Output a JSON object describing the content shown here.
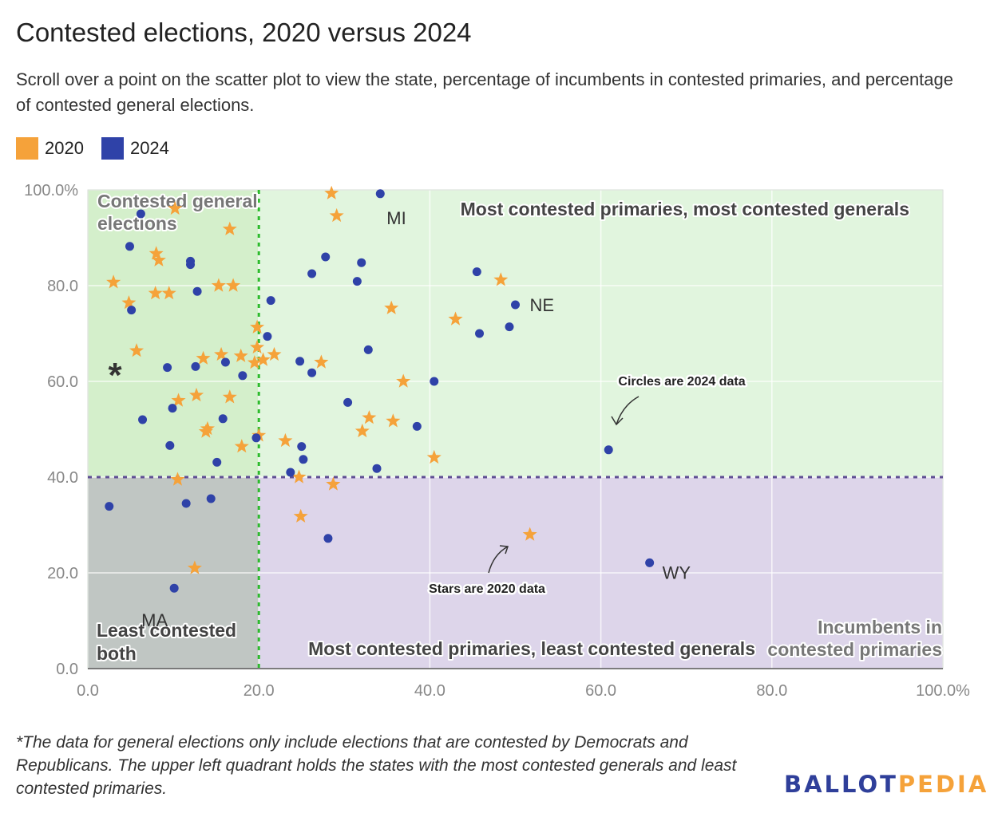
{
  "title": "Contested elections, 2020 versus 2024",
  "subtitle": "Scroll over a point on the scatter plot to view the state, percentage of incumbents in contested primaries, and percentage of contested general elections.",
  "legend": [
    {
      "label": "2020",
      "color": "#f5a23a"
    },
    {
      "label": "2024",
      "color": "#2f42a8"
    }
  ],
  "footnote": "*The data for general elections only include elections that are contested by Democrats and Republicans. The upper left quadrant holds the states with the most contested generals and least contested primaries.",
  "brand": {
    "part1": "BALLOT",
    "part2": "PEDIA"
  },
  "chart_data": {
    "type": "scatter",
    "xlim": [
      0,
      100
    ],
    "ylim": [
      0,
      100
    ],
    "x_ticks": [
      "0.0",
      "20.0",
      "40.0",
      "60.0",
      "80.0",
      "100.0%"
    ],
    "y_ticks": [
      "0.0",
      "20.0",
      "40.0",
      "60.0",
      "80.0",
      "100.0%"
    ],
    "grid": true,
    "thresholds": {
      "x": 20,
      "y": 40
    },
    "quadrant_labels": {
      "upper_left": "Contested general elections",
      "upper_right": "Most contested primaries, most contested generals",
      "lower_left": "Least contested both",
      "lower_right": "Most contested primaries, least contested generals",
      "x_axis_note": "Incumbents in contested primaries"
    },
    "asterisk": "*",
    "annotations": {
      "circles": "Circles are 2024 data",
      "stars": "Stars are 2020 data"
    },
    "colors": {
      "2020": "#f5a23a",
      "2024": "#2f42a8",
      "q_upper_left": "#d4efcb",
      "q_upper_right": "#e1f5de",
      "q_lower_left": "#c0c6c3",
      "q_lower_right": "#ddd5ea"
    },
    "series": [
      {
        "name": "2020",
        "marker": "star",
        "points": [
          [
            10.2,
            96.1
          ],
          [
            28.5,
            99.3
          ],
          [
            29.1,
            94.6
          ],
          [
            16.6,
            91.8
          ],
          [
            8.0,
            86.7
          ],
          [
            8.3,
            85.3
          ],
          [
            3.0,
            80.7
          ],
          [
            7.9,
            78.4
          ],
          [
            9.5,
            78.4
          ],
          [
            15.3,
            80.0
          ],
          [
            17.0,
            80.0
          ],
          [
            48.3,
            81.2
          ],
          [
            4.8,
            76.4
          ],
          [
            35.5,
            75.3
          ],
          [
            43.0,
            73.0
          ],
          [
            19.8,
            71.3
          ],
          [
            19.8,
            67.1
          ],
          [
            5.7,
            66.4
          ],
          [
            13.5,
            64.8
          ],
          [
            15.6,
            65.6
          ],
          [
            17.9,
            65.3
          ],
          [
            19.5,
            63.9
          ],
          [
            20.5,
            64.5
          ],
          [
            21.8,
            65.6
          ],
          [
            27.3,
            64.0
          ],
          [
            36.9,
            60.0
          ],
          [
            16.6,
            56.7
          ],
          [
            12.7,
            57.1
          ],
          [
            10.6,
            56.0
          ],
          [
            14.0,
            50.1
          ],
          [
            13.8,
            49.5
          ],
          [
            32.9,
            52.4
          ],
          [
            35.7,
            51.7
          ],
          [
            32.1,
            49.6
          ],
          [
            20.0,
            48.7
          ],
          [
            23.1,
            47.6
          ],
          [
            18.0,
            46.4
          ],
          [
            40.5,
            44.1
          ],
          [
            24.7,
            40.0
          ],
          [
            10.5,
            39.5
          ],
          [
            28.7,
            38.5
          ],
          [
            24.9,
            31.8
          ],
          [
            51.7,
            28.0
          ],
          [
            12.5,
            21.0
          ]
        ]
      },
      {
        "name": "2024",
        "marker": "circle",
        "points": [
          [
            34.2,
            99.2
          ],
          [
            6.2,
            95.0
          ],
          [
            4.9,
            88.2
          ],
          [
            12.0,
            85.1
          ],
          [
            12.0,
            84.4
          ],
          [
            27.8,
            86.0
          ],
          [
            32.0,
            84.8
          ],
          [
            26.2,
            82.5
          ],
          [
            31.5,
            80.9
          ],
          [
            12.8,
            78.8
          ],
          [
            45.5,
            82.9
          ],
          [
            21.4,
            76.9
          ],
          [
            5.1,
            74.9
          ],
          [
            50.0,
            76.0
          ],
          [
            49.3,
            71.4
          ],
          [
            45.8,
            70.0
          ],
          [
            21.0,
            69.4
          ],
          [
            32.8,
            66.6
          ],
          [
            16.1,
            64.0
          ],
          [
            24.8,
            64.2
          ],
          [
            12.6,
            63.1
          ],
          [
            9.3,
            62.9
          ],
          [
            26.2,
            61.8
          ],
          [
            18.1,
            61.2
          ],
          [
            40.5,
            60.0
          ],
          [
            30.4,
            55.6
          ],
          [
            9.9,
            54.4
          ],
          [
            6.4,
            52.0
          ],
          [
            15.8,
            52.2
          ],
          [
            38.5,
            50.6
          ],
          [
            19.7,
            48.2
          ],
          [
            9.6,
            46.6
          ],
          [
            25.0,
            46.4
          ],
          [
            25.2,
            43.7
          ],
          [
            15.1,
            43.1
          ],
          [
            33.8,
            41.8
          ],
          [
            60.9,
            45.7
          ],
          [
            23.7,
            41.0
          ],
          [
            2.5,
            33.9
          ],
          [
            11.5,
            34.5
          ],
          [
            14.4,
            35.5
          ],
          [
            28.1,
            27.2
          ],
          [
            65.7,
            22.1
          ],
          [
            10.1,
            16.8
          ]
        ]
      }
    ],
    "point_labels": [
      {
        "text": "MI",
        "x": 34.2,
        "y": 99.2
      },
      {
        "text": "NE",
        "x": 50.0,
        "y": 76.0
      },
      {
        "text": "WY",
        "x": 65.7,
        "y": 22.1
      },
      {
        "text": "MA",
        "x": 10.1,
        "y": 16.8
      }
    ]
  }
}
